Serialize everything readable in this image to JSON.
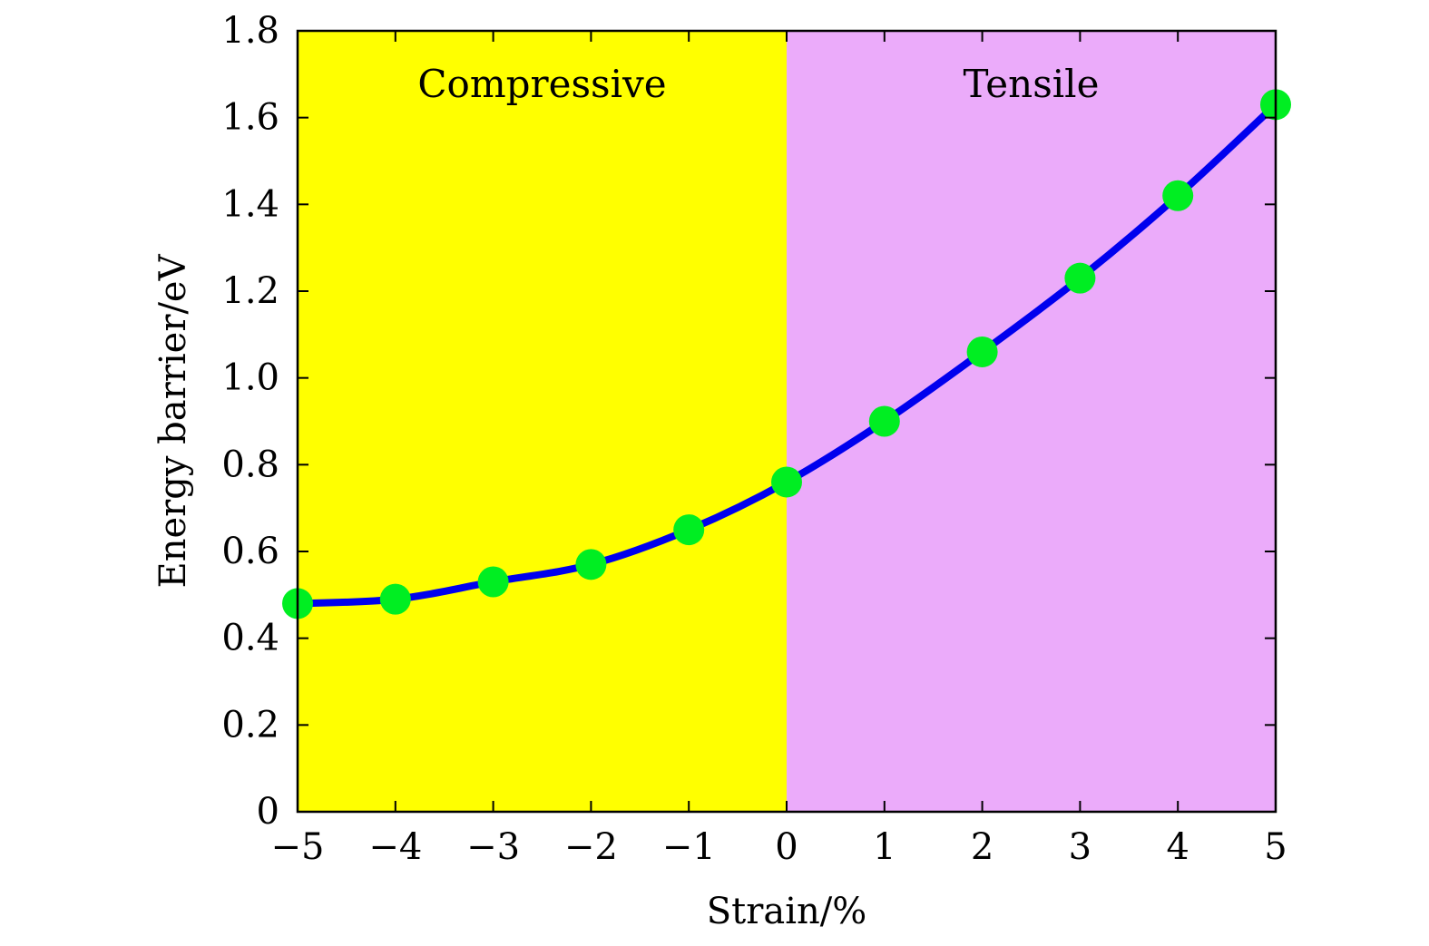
{
  "chart_data": {
    "type": "line",
    "title": "",
    "xlabel": "Strain/%",
    "ylabel": "Energy barrier/eV",
    "xlim": [
      -5,
      5
    ],
    "ylim": [
      0,
      1.8
    ],
    "grid": false,
    "x_ticks": [
      -5,
      -4,
      -3,
      -2,
      -1,
      0,
      1,
      2,
      3,
      4,
      5
    ],
    "x_tick_labels": [
      "−5",
      "−4",
      "−3",
      "−2",
      "−1",
      "0",
      "1",
      "2",
      "3",
      "4",
      "5"
    ],
    "y_ticks": [
      0,
      0.2,
      0.4,
      0.6,
      0.8,
      1.0,
      1.2,
      1.4,
      1.6,
      1.8
    ],
    "y_tick_labels": [
      "0",
      "0.2",
      "0.4",
      "0.6",
      "0.8",
      "1.0",
      "1.2",
      "1.4",
      "1.6",
      "1.8"
    ],
    "regions": [
      {
        "label": "Compressive",
        "x_range": [
          -5,
          0
        ],
        "color": "#ffff00"
      },
      {
        "label": "Tensile",
        "x_range": [
          0,
          5
        ],
        "color": "#ebabfa"
      }
    ],
    "series": [
      {
        "name": "Energy barrier",
        "x": [
          -5,
          -4,
          -3,
          -2,
          -1,
          0,
          1,
          2,
          3,
          4,
          5
        ],
        "values": [
          0.48,
          0.49,
          0.53,
          0.57,
          0.65,
          0.76,
          0.9,
          1.06,
          1.23,
          1.42,
          1.63
        ],
        "line_color": "#0000ee",
        "marker_color": "#00ee22"
      }
    ]
  }
}
